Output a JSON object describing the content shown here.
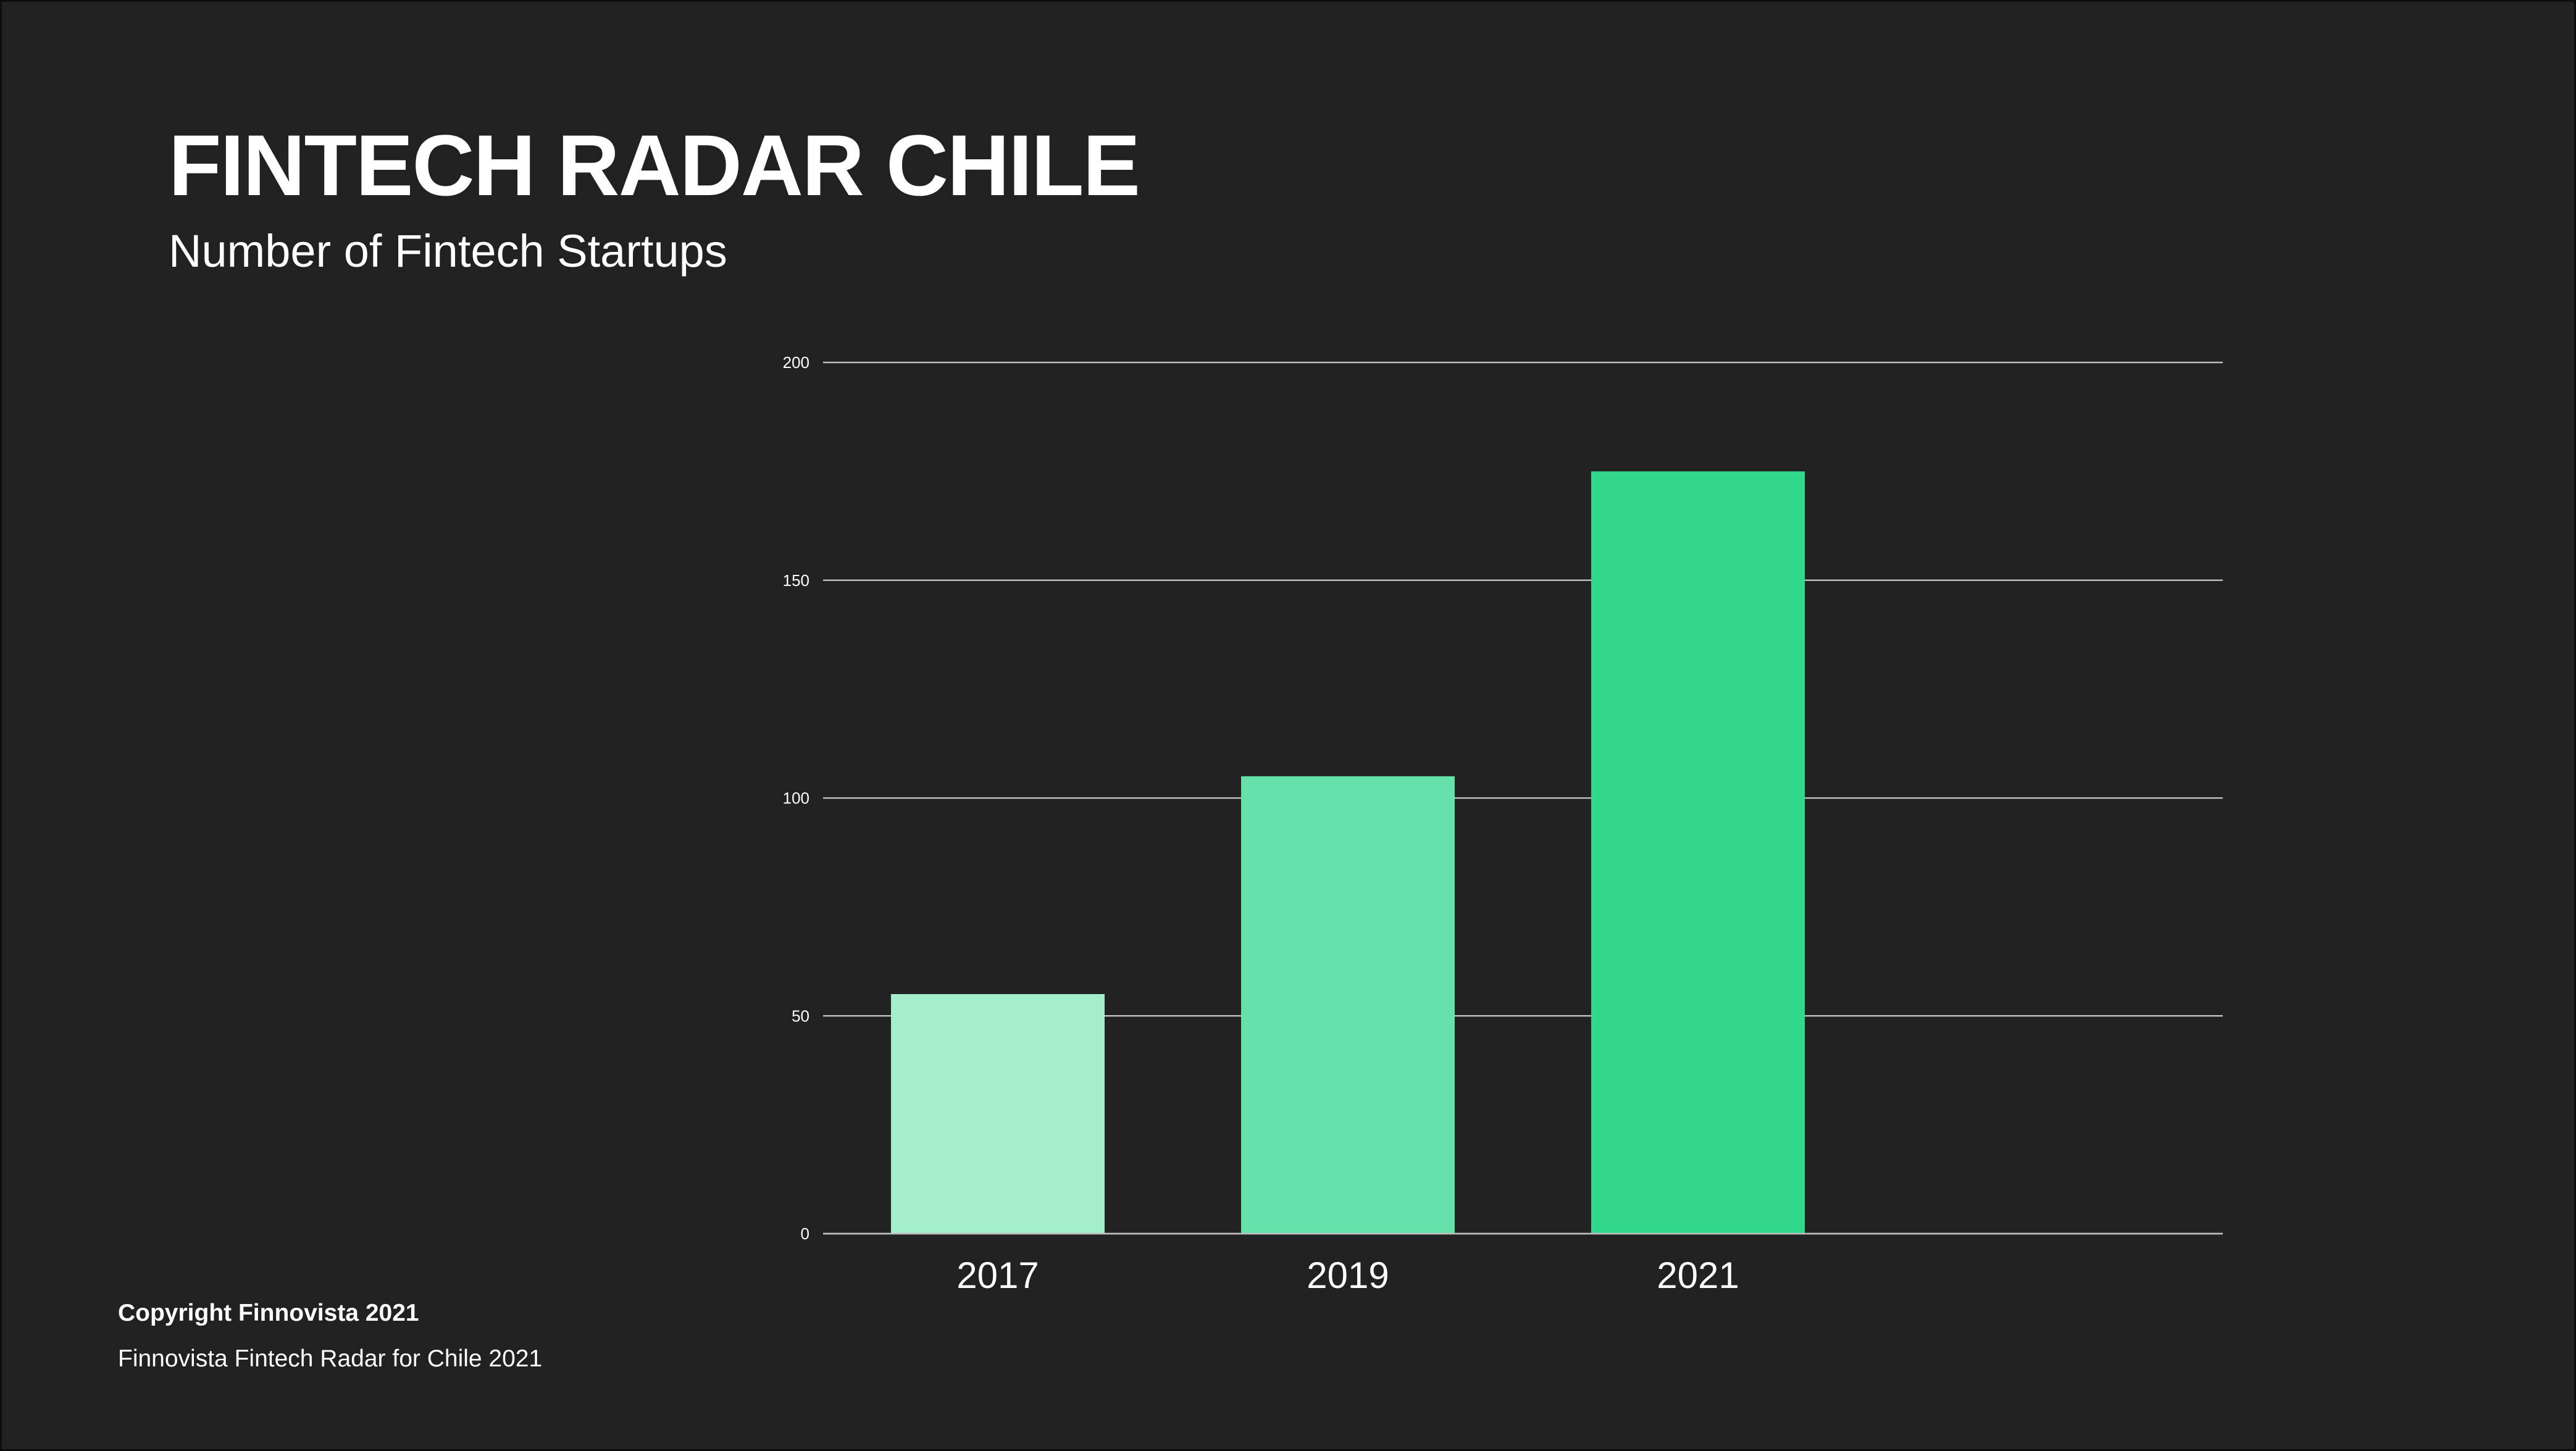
{
  "chart_data": {
    "type": "bar",
    "title": "FINTECH RADAR CHILE",
    "subtitle": "Number of Fintech Startups",
    "categories": [
      "2017",
      "2019",
      "2021"
    ],
    "values": [
      55,
      105,
      175
    ],
    "ylim": [
      0,
      200
    ],
    "yticks": [
      0,
      50,
      100,
      150,
      200
    ],
    "xlabel": "",
    "ylabel": "",
    "grid": true,
    "bar_colors": [
      "#a5eecb",
      "#66e1a9",
      "#31d78b"
    ],
    "gridline_color": "#bdbdbd"
  },
  "footer": {
    "copyright": "Copyright Finnovista 2021",
    "source": "Finnovista Fintech Radar for Chile 2021"
  },
  "colors": {
    "background": "#212121",
    "text": "#ffffff"
  }
}
